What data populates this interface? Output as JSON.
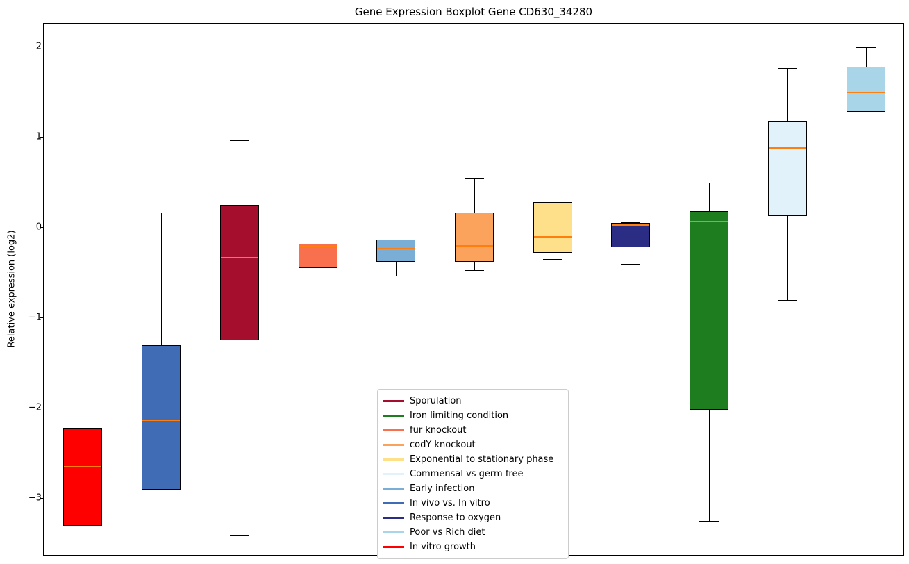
{
  "chart_data": {
    "type": "boxplot",
    "title": "Gene Expression Boxplot Gene CD630_34280",
    "xlabel": "",
    "ylabel": "Relative expression (log2)",
    "ylim": [
      -3.64,
      2.26
    ],
    "yticks": [
      2,
      1,
      0,
      -1,
      -2,
      -3
    ],
    "grid": false,
    "median_color": "#ff7f0e",
    "legend_position": "lower-center",
    "series": [
      {
        "name": "In vitro growth",
        "color": "#ff0000",
        "q1": -3.3,
        "q3": -2.22,
        "median": -2.65,
        "whisker_low": -3.3,
        "whisker_high": -1.67
      },
      {
        "name": "In vivo vs. In vitro",
        "color": "#3f6cb5",
        "q1": -2.9,
        "q3": -1.3,
        "median": -2.13,
        "whisker_low": -2.9,
        "whisker_high": 0.17
      },
      {
        "name": "Sporulation",
        "color": "#a50f2d",
        "q1": -1.25,
        "q3": 0.25,
        "median": -0.33,
        "whisker_low": -3.4,
        "whisker_high": 0.97
      },
      {
        "name": "fur knockout",
        "color": "#f9704f",
        "q1": -0.45,
        "q3": -0.18,
        "median": -0.21,
        "whisker_low": -0.45,
        "whisker_high": -0.18
      },
      {
        "name": "Early infection",
        "color": "#7aaed6",
        "q1": -0.38,
        "q3": -0.13,
        "median": -0.23,
        "whisker_low": -0.53,
        "whisker_high": -0.13
      },
      {
        "name": "codY knockout",
        "color": "#fba35c",
        "q1": -0.38,
        "q3": 0.17,
        "median": -0.2,
        "whisker_low": -0.47,
        "whisker_high": 0.55
      },
      {
        "name": "Exponential to stationary phase",
        "color": "#fee08b",
        "q1": -0.28,
        "q3": 0.28,
        "median": -0.1,
        "whisker_low": -0.35,
        "whisker_high": 0.4
      },
      {
        "name": "Response to oxygen",
        "color": "#2b2d84",
        "q1": -0.22,
        "q3": 0.05,
        "median": 0.03,
        "whisker_low": -0.4,
        "whisker_high": 0.06
      },
      {
        "name": "Iron limiting condition",
        "color": "#1e7d1e",
        "q1": -2.02,
        "q3": 0.18,
        "median": 0.07,
        "whisker_low": -3.25,
        "whisker_high": 0.5
      },
      {
        "name": "Commensal vs germ free",
        "color": "#e2f2fa",
        "q1": 0.13,
        "q3": 1.18,
        "median": 0.88,
        "whisker_low": -0.8,
        "whisker_high": 1.77
      },
      {
        "name": "Poor vs Rich diet",
        "color": "#a8d6e8",
        "q1": 1.28,
        "q3": 1.78,
        "median": 1.5,
        "whisker_low": 1.28,
        "whisker_high": 2.0
      }
    ],
    "legend": [
      {
        "label": "Sporulation",
        "color": "#a50f2d"
      },
      {
        "label": "Iron limiting condition",
        "color": "#1e7d1e"
      },
      {
        "label": "fur knockout",
        "color": "#f9704f"
      },
      {
        "label": "codY knockout",
        "color": "#fba35c"
      },
      {
        "label": "Exponential to stationary phase",
        "color": "#fee08b"
      },
      {
        "label": "Commensal vs germ free",
        "color": "#e2f2fa"
      },
      {
        "label": "Early infection",
        "color": "#7aaed6"
      },
      {
        "label": "In vivo vs. In vitro",
        "color": "#3f6cb5"
      },
      {
        "label": "Response to oxygen",
        "color": "#2b2d84"
      },
      {
        "label": "Poor vs Rich diet",
        "color": "#a8d6e8"
      },
      {
        "label": "In vitro growth",
        "color": "#ff0000"
      }
    ]
  }
}
